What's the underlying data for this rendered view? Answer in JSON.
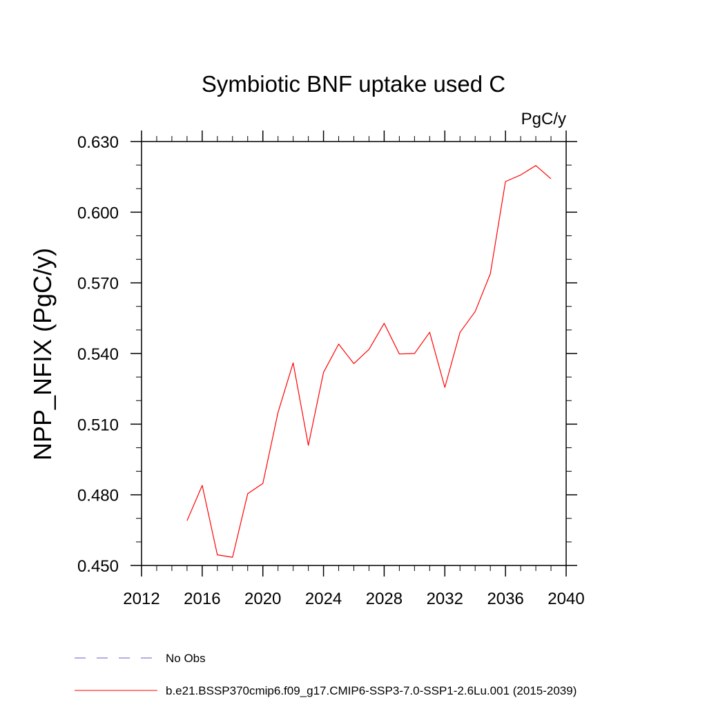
{
  "chart_data": {
    "type": "line",
    "title": "Symbiotic BNF uptake used C",
    "units_label": "PgC/y",
    "ylabel": "NPP_NFIX  (PgC/y)",
    "xlabel": "",
    "xlim": [
      2012,
      2040
    ],
    "ylim": [
      0.45,
      0.63
    ],
    "x_ticks": [
      2012,
      2016,
      2020,
      2024,
      2028,
      2032,
      2036,
      2040
    ],
    "x_tick_labels": [
      "2012",
      "2016",
      "2020",
      "2024",
      "2028",
      "2032",
      "2036",
      "2040"
    ],
    "y_ticks": [
      0.45,
      0.48,
      0.51,
      0.54,
      0.57,
      0.6,
      0.63
    ],
    "y_tick_labels": [
      "0.450",
      "0.480",
      "0.510",
      "0.540",
      "0.570",
      "0.600",
      "0.630"
    ],
    "x_minor_step": 1,
    "y_minor_step": 0.01,
    "grid": false,
    "legend_placement": "bottom",
    "series": [
      {
        "name": "b.e21.BSSP370cmip6.f09_g17.CMIP6-SSP3-7.0-SSP1-2.6Lu.001 (2015-2039)",
        "color": "#ff0000",
        "style": "solid",
        "x": [
          2015,
          2016,
          2017,
          2018,
          2019,
          2020,
          2021,
          2022,
          2023,
          2024,
          2025,
          2026,
          2027,
          2028,
          2029,
          2030,
          2031,
          2032,
          2033,
          2034,
          2035,
          2036,
          2037,
          2038,
          2039
        ],
        "y": [
          0.469,
          0.484,
          0.4545,
          0.4535,
          0.4805,
          0.4848,
          0.515,
          0.536,
          0.501,
          0.532,
          0.544,
          0.5357,
          0.5418,
          0.5528,
          0.5398,
          0.54,
          0.549,
          0.5256,
          0.549,
          0.5578,
          0.5739,
          0.613,
          0.6158,
          0.6198,
          0.6142
        ]
      }
    ],
    "legend": [
      {
        "label": "No Obs",
        "color": "#6a5acd",
        "style": "dashed"
      },
      {
        "label": "b.e21.BSSP370cmip6.f09_g17.CMIP6-SSP3-7.0-SSP1-2.6Lu.001 (2015-2039)",
        "color": "#ff0000",
        "style": "solid"
      }
    ]
  }
}
